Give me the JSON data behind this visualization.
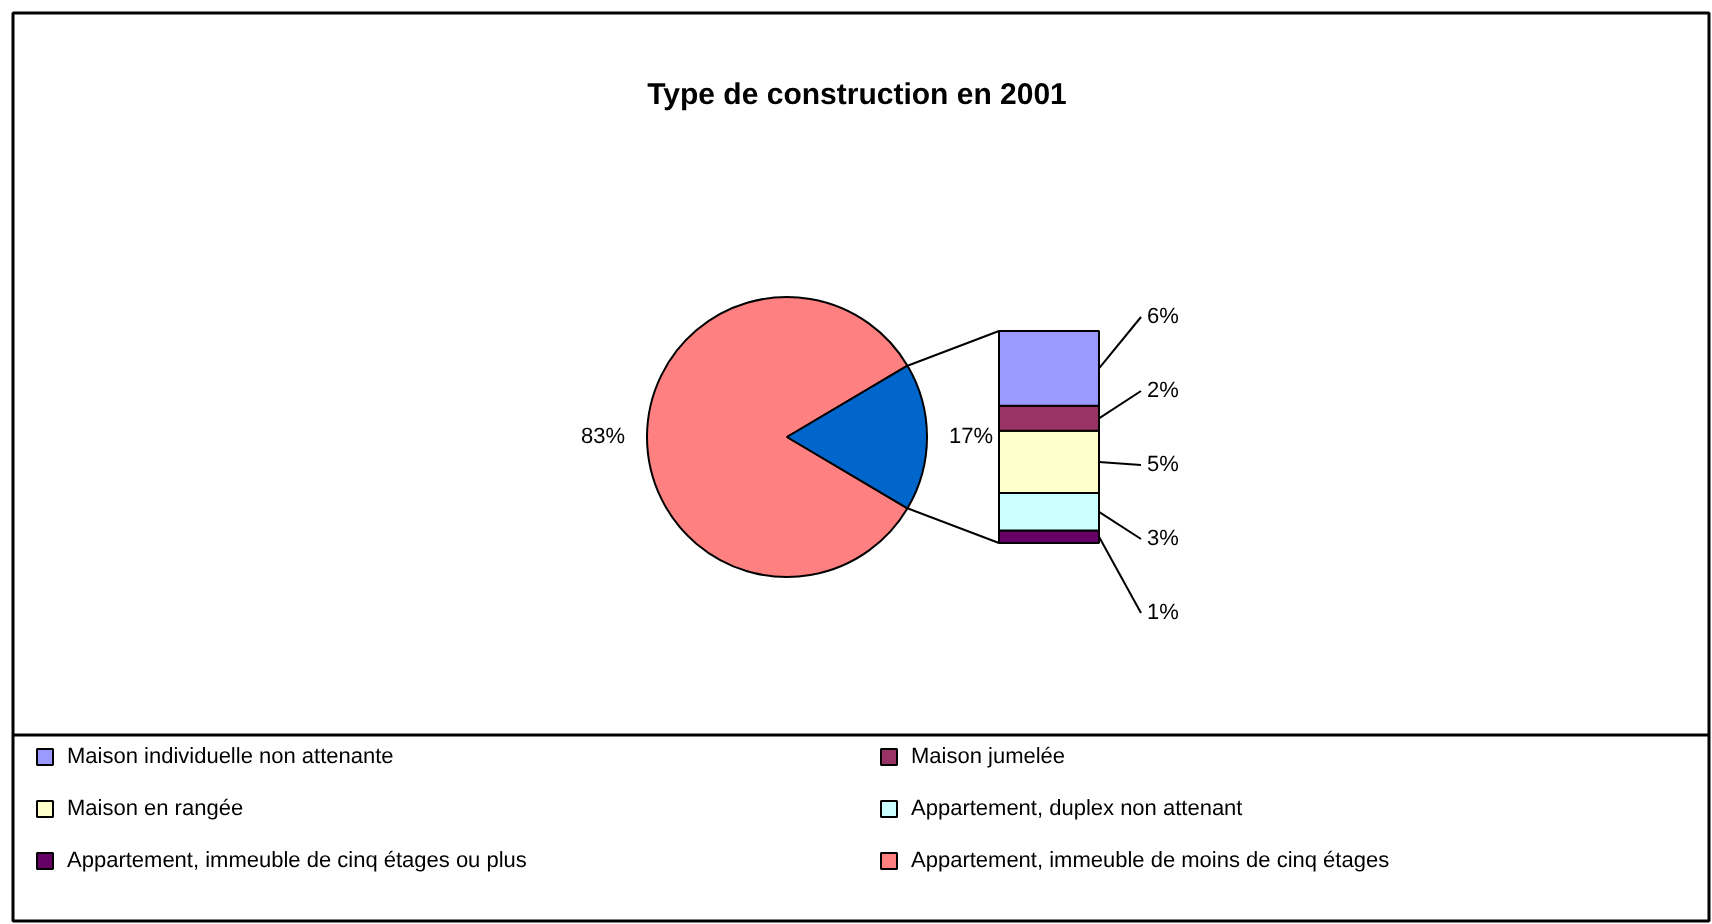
{
  "chart_data": [
    {
      "type": "pie",
      "title": "Type de construction en 2001",
      "categories": [
        "Appartement, immeuble de moins de cinq étages",
        null
      ],
      "values": [
        83,
        17
      ],
      "colors": [
        "#ff8080",
        "#0066cc"
      ],
      "value_labels": [
        "83%",
        "17%"
      ],
      "legend": "bottom"
    },
    {
      "type": "bar",
      "stacked": true,
      "categories": [
        null
      ],
      "legend": "bottom",
      "series": [
        {
          "name": "Appartement, immeuble de cinq étages ou plus",
          "color": "#660066",
          "values": [
            1
          ],
          "value_labels": [
            "1%"
          ]
        },
        {
          "name": "Appartement, duplex non attenant",
          "color": "#ccffff",
          "values": [
            3
          ],
          "value_labels": [
            "3%"
          ]
        },
        {
          "name": "Maison en rangée",
          "color": "#ffffcc",
          "values": [
            5
          ],
          "value_labels": [
            "5%"
          ]
        },
        {
          "name": "Maison jumelée",
          "color": "#993366",
          "values": [
            2
          ],
          "value_labels": [
            "2%"
          ]
        },
        {
          "name": "Maison individuelle non attenante",
          "color": "#9999ff",
          "values": [
            6
          ],
          "value_labels": [
            "6%"
          ]
        }
      ]
    }
  ]
}
